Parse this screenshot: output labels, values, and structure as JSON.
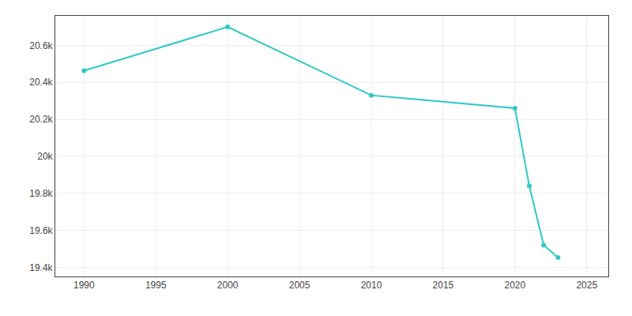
{
  "chart_data": {
    "type": "line",
    "x": [
      1990,
      2000,
      2010,
      2020,
      2021,
      2022,
      2023
    ],
    "values": [
      20463,
      20700,
      20330,
      20260,
      19840,
      19520,
      19453
    ],
    "color": "#2ec8c8",
    "marker": "circle",
    "xlim": [
      1988,
      2026.5
    ],
    "ylim": [
      19350,
      20760
    ],
    "xticks": [
      1990,
      1995,
      2000,
      2005,
      2010,
      2015,
      2020,
      2025
    ],
    "yticks": [
      {
        "value": 19400,
        "label": "19.4k"
      },
      {
        "value": 19600,
        "label": "19.6k"
      },
      {
        "value": 19800,
        "label": "19.8k"
      },
      {
        "value": 20000,
        "label": "20k"
      },
      {
        "value": 20200,
        "label": "20.2k"
      },
      {
        "value": 20400,
        "label": "20.4k"
      },
      {
        "value": 20600,
        "label": "20.6k"
      }
    ],
    "grid": true
  }
}
